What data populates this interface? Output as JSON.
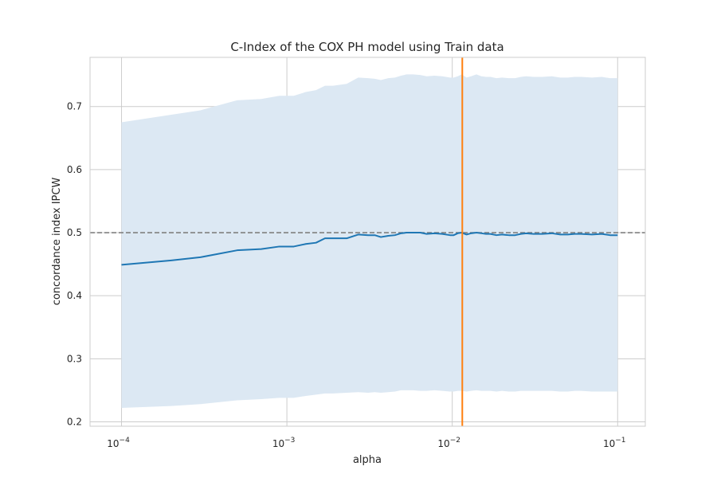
{
  "chart_data": {
    "type": "line",
    "title": "C-Index of the COX PH model using Train data",
    "xlabel": "alpha",
    "ylabel": "concordance index IPCW",
    "xscale": "log",
    "xlim": [
      6.45e-05,
      0.147
    ],
    "ylim": [
      0.193,
      0.778
    ],
    "grid": true,
    "x_ticks": [
      {
        "value": 0.0001,
        "base": "10",
        "exp": "−4"
      },
      {
        "value": 0.001,
        "base": "10",
        "exp": "−3"
      },
      {
        "value": 0.01,
        "base": "10",
        "exp": "−2"
      },
      {
        "value": 0.1,
        "base": "10",
        "exp": "−1"
      }
    ],
    "y_ticks": [
      {
        "value": 0.2,
        "label": "0.2"
      },
      {
        "value": 0.3,
        "label": "0.3"
      },
      {
        "value": 0.4,
        "label": "0.4"
      },
      {
        "value": 0.5,
        "label": "0.5"
      },
      {
        "value": 0.6,
        "label": "0.6"
      },
      {
        "value": 0.7,
        "label": "0.7"
      }
    ],
    "series": [
      {
        "color": "#1f77b4",
        "band_color": "#dce8f3",
        "x": [
          0.0001,
          0.0002,
          0.0003,
          0.0005,
          0.0007,
          0.0009,
          0.0011,
          0.0013,
          0.0015,
          0.0017,
          0.0019,
          0.0023,
          0.0027,
          0.0031,
          0.0034,
          0.0037,
          0.0041,
          0.0045,
          0.0049,
          0.0053,
          0.0058,
          0.0064,
          0.007,
          0.0078,
          0.0087,
          0.0097,
          0.0102,
          0.0108,
          0.0114,
          0.0122,
          0.013,
          0.014,
          0.015,
          0.016,
          0.017,
          0.0185,
          0.02,
          0.022,
          0.024,
          0.026,
          0.028,
          0.031,
          0.035,
          0.04,
          0.045,
          0.05,
          0.055,
          0.06,
          0.07,
          0.08,
          0.09,
          0.1
        ],
        "y": [
          0.449,
          0.456,
          0.461,
          0.472,
          0.474,
          0.478,
          0.478,
          0.482,
          0.484,
          0.491,
          0.491,
          0.491,
          0.497,
          0.496,
          0.496,
          0.493,
          0.495,
          0.496,
          0.499,
          0.5,
          0.5,
          0.5,
          0.498,
          0.499,
          0.498,
          0.496,
          0.496,
          0.499,
          0.5,
          0.497,
          0.499,
          0.5,
          0.499,
          0.498,
          0.498,
          0.496,
          0.497,
          0.496,
          0.496,
          0.498,
          0.499,
          0.498,
          0.498,
          0.499,
          0.497,
          0.497,
          0.498,
          0.498,
          0.497,
          0.498,
          0.496,
          0.496
        ],
        "lower": [
          0.222,
          0.225,
          0.228,
          0.234,
          0.236,
          0.238,
          0.238,
          0.241,
          0.243,
          0.245,
          0.245,
          0.246,
          0.247,
          0.246,
          0.247,
          0.246,
          0.247,
          0.248,
          0.25,
          0.25,
          0.25,
          0.249,
          0.249,
          0.25,
          0.249,
          0.248,
          0.248,
          0.249,
          0.249,
          0.248,
          0.249,
          0.25,
          0.249,
          0.249,
          0.249,
          0.248,
          0.249,
          0.248,
          0.248,
          0.249,
          0.249,
          0.249,
          0.249,
          0.249,
          0.248,
          0.248,
          0.249,
          0.249,
          0.248,
          0.248,
          0.248,
          0.248
        ],
        "upper": [
          0.675,
          0.687,
          0.694,
          0.71,
          0.712,
          0.717,
          0.717,
          0.723,
          0.726,
          0.733,
          0.733,
          0.736,
          0.746,
          0.745,
          0.744,
          0.742,
          0.745,
          0.746,
          0.749,
          0.751,
          0.751,
          0.75,
          0.748,
          0.749,
          0.748,
          0.746,
          0.746,
          0.748,
          0.751,
          0.746,
          0.748,
          0.751,
          0.748,
          0.747,
          0.747,
          0.745,
          0.746,
          0.745,
          0.745,
          0.747,
          0.748,
          0.747,
          0.747,
          0.748,
          0.746,
          0.746,
          0.747,
          0.747,
          0.746,
          0.747,
          0.745,
          0.745
        ]
      }
    ],
    "reference_line": {
      "y": 0.5,
      "color": "#808080",
      "style": "dashed"
    },
    "vertical_marker": {
      "x": 0.0115,
      "color": "#ff7f0e"
    }
  }
}
